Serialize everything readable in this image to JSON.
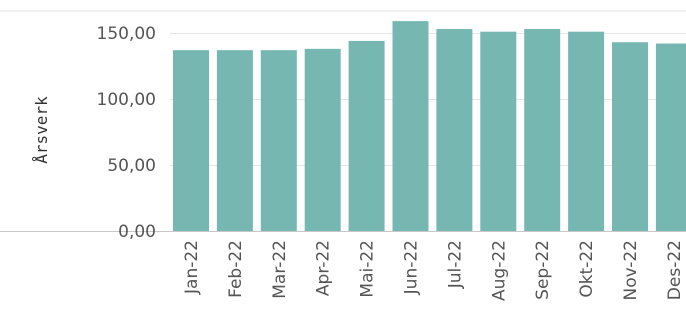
{
  "chart_data": {
    "type": "bar",
    "title": "",
    "xlabel": "",
    "ylabel": "Årsverk",
    "categories": [
      "Jan-22",
      "Feb-22",
      "Mar-22",
      "Apr-22",
      "Mai-22",
      "Jun-22",
      "Jul-22",
      "Aug-22",
      "Sep-22",
      "Okt-22",
      "Nov-22",
      "Des-22"
    ],
    "values": [
      137,
      137,
      137,
      138,
      144,
      159,
      153,
      151,
      153,
      151,
      143,
      142
    ],
    "ylim": [
      0,
      150
    ],
    "yticks": [
      0,
      50,
      100,
      150
    ],
    "ytick_labels": [
      "0,00",
      "50,00",
      "100,00",
      "150,00"
    ],
    "grid": true,
    "legend": "none",
    "colors": {
      "bar": "#76b7b2",
      "grid": "#e6e6e6",
      "axis": "#c8c8c8"
    }
  }
}
